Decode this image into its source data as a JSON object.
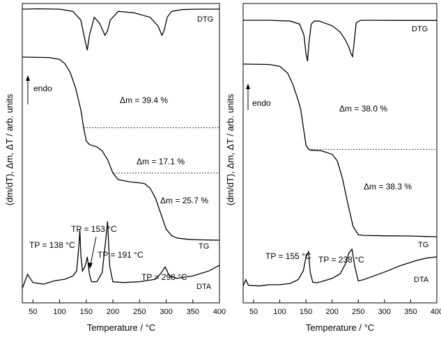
{
  "chart_data": [
    {
      "type": "line",
      "xlabel": "Temperature / °C",
      "ylabel": "(dm/dT), Δm, ΔT / arb. units",
      "xlim": [
        30,
        400
      ],
      "xticks": [
        50,
        100,
        150,
        200,
        250,
        300,
        350,
        400
      ],
      "series": [
        {
          "name": "DTG",
          "x": [
            30,
            60,
            100,
            125,
            140,
            148,
            152,
            156,
            165,
            175,
            185,
            190,
            195,
            210,
            240,
            270,
            285,
            292,
            296,
            302,
            310,
            330,
            360,
            400
          ],
          "y": [
            0.5,
            0.3,
            0.5,
            2,
            8,
            22,
            28,
            18,
            6,
            10,
            18,
            15,
            8,
            2,
            3,
            6,
            12,
            18,
            15,
            6,
            2,
            0.8,
            0.5,
            0.5
          ]
        },
        {
          "name": "TG",
          "x": [
            30,
            80,
            100,
            110,
            120,
            130,
            140,
            145,
            150,
            155,
            160,
            170,
            180,
            190,
            200,
            210,
            230,
            250,
            260,
            270,
            280,
            290,
            300,
            310,
            320,
            340,
            360,
            380,
            400
          ],
          "y": [
            100,
            99.8,
            99,
            97,
            93,
            86,
            76,
            68,
            62,
            60.6,
            60,
            59.3,
            57.5,
            53.5,
            47.5,
            44.5,
            43.5,
            43,
            42.6,
            40.5,
            36,
            29,
            22,
            19.1,
            18,
            17.4,
            17.2,
            17.1,
            17
          ]
        },
        {
          "name": "DTA",
          "x": [
            30,
            40,
            50,
            70,
            90,
            110,
            125,
            132,
            136,
            138,
            140,
            143,
            148,
            152,
            156,
            160,
            170,
            180,
            186,
            190,
            194,
            200,
            220,
            250,
            280,
            290,
            298,
            306,
            320,
            350,
            380,
            400
          ],
          "y": [
            0.5,
            2.2,
            1.2,
            1.0,
            1.4,
            1.6,
            2.0,
            2.6,
            5.5,
            7.6,
            4.5,
            2.6,
            3.2,
            4.3,
            2.2,
            1.3,
            1.3,
            2.4,
            6.0,
            8.6,
            3.2,
            1.3,
            1.2,
            1.3,
            1.6,
            2.3,
            3.1,
            2.0,
            1.7,
            2.0,
            2.6,
            3.3
          ]
        }
      ],
      "reference_lines": [
        {
          "from": 145,
          "to": 400
        },
        {
          "from": 200,
          "to": 400
        }
      ],
      "annotations": {
        "dm1": "Δm = 39.4 %",
        "dm2": "Δm = 17.1 %",
        "dm3": "Δm = 25.7 %",
        "tp1": "TP = 138 °C",
        "tp2": "TP = 153 °C",
        "tp3": "TP = 191 °C",
        "tp4": "TP = 298 °C",
        "endo": "endo"
      },
      "grid": false
    },
    {
      "type": "line",
      "xlabel": "Temperature / °C",
      "ylabel": "(dm/dT), Δm, ΔT / arb. units",
      "xlim": [
        30,
        400
      ],
      "xticks": [
        50,
        100,
        150,
        200,
        250,
        300,
        350,
        400
      ],
      "series": [
        {
          "name": "DTG",
          "x": [
            30,
            80,
            120,
            138,
            146,
            150,
            153,
            156,
            160,
            166,
            175,
            200,
            215,
            225,
            232,
            236,
            239,
            242,
            246,
            255,
            280,
            330,
            400
          ],
          "y": [
            0.5,
            0.5,
            1,
            3,
            10,
            22,
            27,
            14,
            3,
            1,
            1,
            4,
            8,
            13,
            18,
            22,
            24,
            15,
            2,
            0.5,
            0.5,
            0.6,
            0.6
          ]
        },
        {
          "name": "TG",
          "x": [
            30,
            80,
            100,
            115,
            125,
            135,
            140,
            145,
            150,
            155,
            160,
            180,
            200,
            210,
            220,
            230,
            240,
            250,
            260,
            300,
            350,
            380,
            400
          ],
          "y": [
            100,
            99.8,
            99,
            96,
            91,
            84,
            80,
            72,
            64,
            62.2,
            61.8,
            61.5,
            60,
            57,
            49,
            38,
            28,
            24.3,
            24,
            23.8,
            23.7,
            23.5,
            23.4
          ]
        },
        {
          "name": "DTA",
          "x": [
            30,
            35,
            40,
            60,
            80,
            100,
            120,
            135,
            145,
            150,
            155,
            158,
            163,
            170,
            180,
            200,
            215,
            225,
            232,
            238,
            243,
            250,
            260,
            280,
            300,
            330,
            360,
            380,
            400
          ],
          "y": [
            0.8,
            1.8,
            0.9,
            0.8,
            1.0,
            1.0,
            1.2,
            1.8,
            3.2,
            5.4,
            6.2,
            3.0,
            1.4,
            1.3,
            1.5,
            2.0,
            2.7,
            4.2,
            6.0,
            6.6,
            4.0,
            1.6,
            1.8,
            2.4,
            3.0,
            4.0,
            4.8,
            5.2,
            5.4
          ]
        }
      ],
      "reference_lines": [
        {
          "from": 155,
          "to": 400
        }
      ],
      "annotations": {
        "dm1": "Δm = 38.0 %",
        "dm2": "Δm = 38.3 %",
        "tp1": "TP = 155 °C",
        "tp2": "TP = 238 °C",
        "endo": "endo"
      },
      "grid": false
    }
  ]
}
